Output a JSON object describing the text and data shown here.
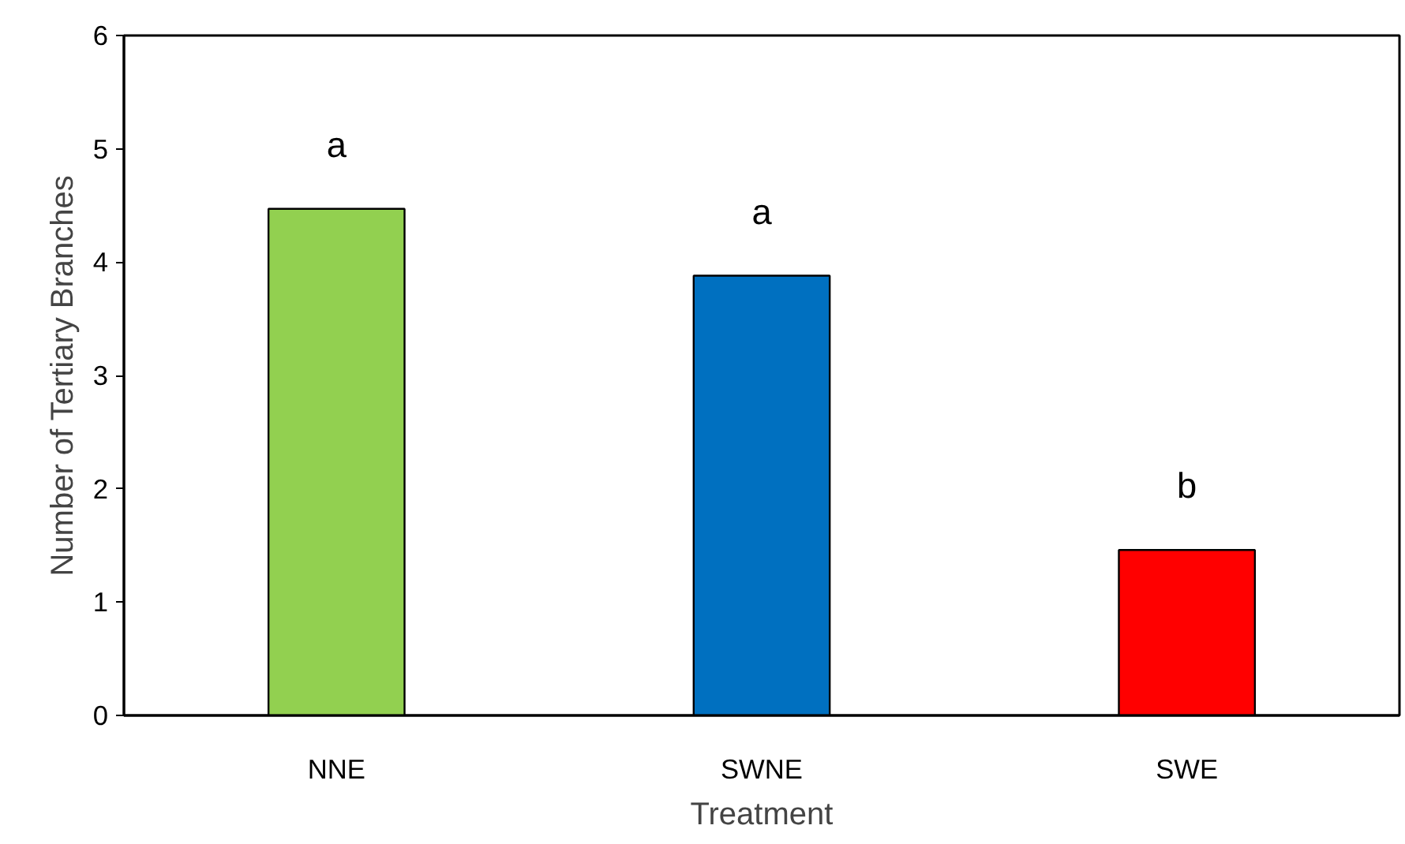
{
  "chart_data": {
    "type": "bar",
    "xlabel": "Treatment",
    "ylabel": "Number of Tertiary Branches",
    "categories": [
      "NNE",
      "SWNE",
      "SWE"
    ],
    "values": [
      4.47,
      3.88,
      1.46
    ],
    "colors": [
      "#92d050",
      "#0070c0",
      "#ff0000"
    ],
    "ylim": [
      0,
      6
    ],
    "yticks": [
      0,
      1,
      2,
      3,
      4,
      5,
      6
    ],
    "grid": false,
    "annotations": [
      "a",
      "a",
      "b"
    ]
  }
}
